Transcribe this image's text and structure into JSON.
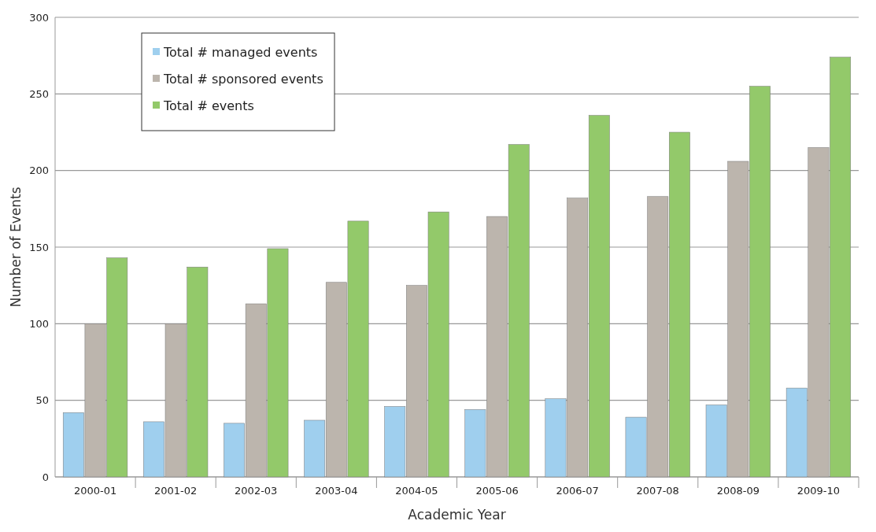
{
  "chart_data": {
    "type": "bar",
    "xlabel": "Academic Year",
    "ylabel": "Number of Events",
    "categories": [
      "2000-01",
      "2001-02",
      "2002-03",
      "2003-04",
      "2004-05",
      "2005-06",
      "2006-07",
      "2007-08",
      "2008-09",
      "2009-10"
    ],
    "series": [
      {
        "name": "Total # managed events",
        "color": "#9fcfee",
        "values": [
          42,
          36,
          35,
          37,
          46,
          44,
          51,
          39,
          47,
          58
        ]
      },
      {
        "name": "Total # sponsored events",
        "color": "#bcb5ad",
        "values": [
          100,
          100,
          113,
          127,
          125,
          170,
          182,
          183,
          206,
          215
        ]
      },
      {
        "name": "Total # events",
        "color": "#93c96a",
        "values": [
          143,
          137,
          149,
          167,
          173,
          217,
          236,
          225,
          255,
          274
        ]
      }
    ],
    "ylim": [
      0,
      300
    ],
    "yticks": [
      0,
      50,
      100,
      150,
      200,
      250,
      300
    ],
    "grid": "y",
    "legend": "top left"
  }
}
